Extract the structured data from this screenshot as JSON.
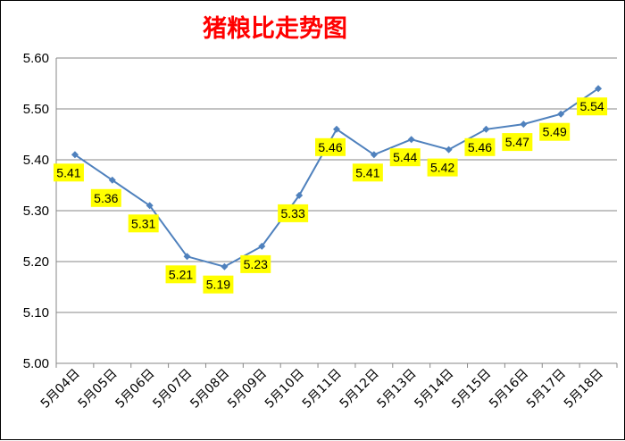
{
  "chart_data": {
    "type": "line",
    "title": "猪粮比走势图",
    "xlabel": "",
    "ylabel": "",
    "categories": [
      "5月04日",
      "5月05日",
      "5月06日",
      "5月07日",
      "5月08日",
      "5月09日",
      "5月10日",
      "5月11日",
      "5月12日",
      "5月13日",
      "5月14日",
      "5月15日",
      "5月16日",
      "5月17日",
      "5月18日"
    ],
    "values": [
      5.41,
      5.36,
      5.31,
      5.21,
      5.19,
      5.23,
      5.33,
      5.46,
      5.41,
      5.44,
      5.42,
      5.46,
      5.47,
      5.49,
      5.54
    ],
    "data_labels": [
      "5.41",
      "5.36",
      "5.31",
      "5.21",
      "5.19",
      "5.23",
      "5.33",
      "5.46",
      "5.41",
      "5.44",
      "5.42",
      "5.46",
      "5.47",
      "5.49",
      "5.54"
    ],
    "ylim": [
      5.0,
      5.6
    ],
    "yticks": [
      "5.00",
      "5.10",
      "5.20",
      "5.30",
      "5.40",
      "5.50",
      "5.60"
    ],
    "grid": true,
    "legend": "none",
    "colors": {
      "line": "#4f81bd",
      "label_bg": "#ffff00",
      "title": "#ff0000",
      "grid": "#878787"
    }
  }
}
